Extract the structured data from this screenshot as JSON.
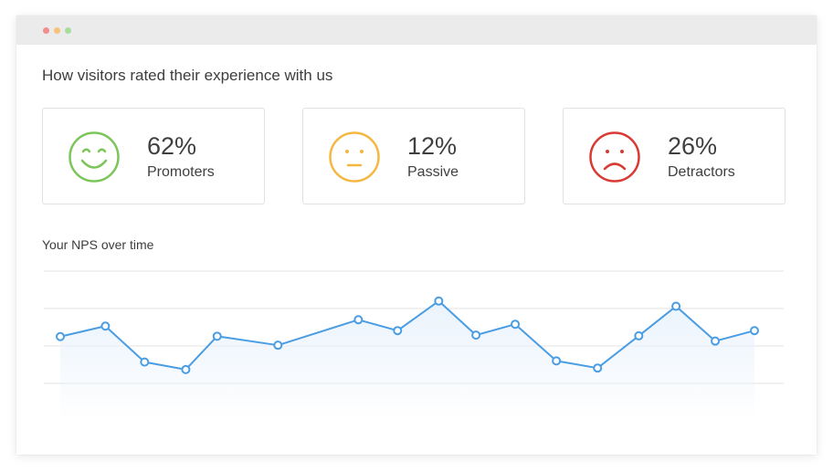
{
  "heading": "How visitors rated their experience with us",
  "cards": [
    {
      "percent": "62%",
      "label": "Promoters",
      "face": "smiling-face-icon",
      "color": "#7cc55b"
    },
    {
      "percent": "12%",
      "label": "Passive",
      "face": "neutral-face-icon",
      "color": "#f4b740"
    },
    {
      "percent": "26%",
      "label": "Detractors",
      "face": "frowning-face-icon",
      "color": "#d93a34"
    }
  ],
  "window_dots": {
    "close": "#f28d8d",
    "minimize": "#f7c37a",
    "maximize": "#a6dd9c"
  },
  "chart_title": "Your NPS over time",
  "chart_data": {
    "type": "area",
    "title": "Your NPS over time",
    "xlabel": "",
    "ylabel": "",
    "grid": true,
    "ylim": [
      0,
      4
    ],
    "x": [
      0,
      1.15,
      2.15,
      3.2,
      4.0,
      5.55,
      7.6,
      8.6,
      9.65,
      10.6,
      11.6,
      12.65,
      13.7,
      14.75,
      15.7,
      16.7,
      17.7
    ],
    "values": [
      2.25,
      2.53,
      1.57,
      1.37,
      2.26,
      2.02,
      2.7,
      2.41,
      3.2,
      2.29,
      2.58,
      1.6,
      1.41,
      2.27,
      3.06,
      2.13,
      2.41
    ],
    "line_color": "#4a9de2",
    "fill_color": "#eaf3fc"
  }
}
